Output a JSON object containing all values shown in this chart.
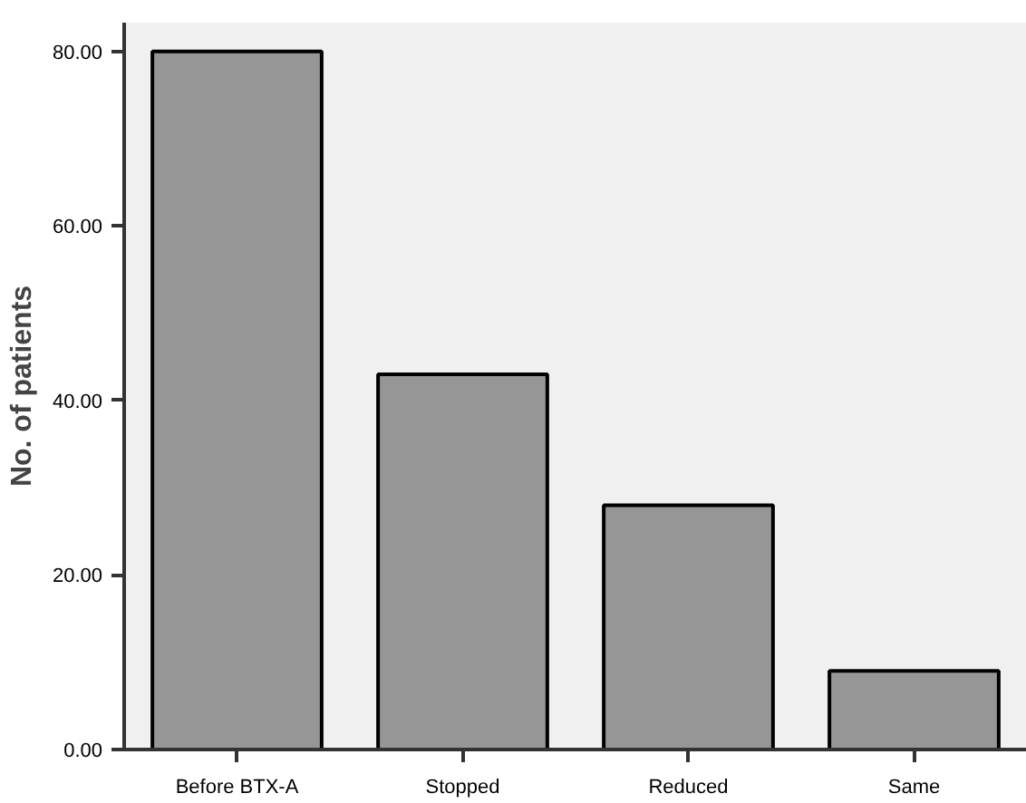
{
  "chart_data": {
    "type": "bar",
    "ylabel": "No. of patients",
    "categories": [
      "Before BTX-A",
      "Stopped",
      "Reduced",
      "Same"
    ],
    "values": [
      80,
      43,
      28,
      9
    ],
    "color": "#969696",
    "ylim": [
      0,
      83.3
    ],
    "yticks": [
      {
        "value": 0,
        "label": "0.00"
      },
      {
        "value": 20,
        "label": "20.00"
      },
      {
        "value": 40,
        "label": "40.00"
      },
      {
        "value": 60,
        "label": "60.00"
      },
      {
        "value": 80,
        "label": "80.00"
      }
    ],
    "grid": false
  }
}
